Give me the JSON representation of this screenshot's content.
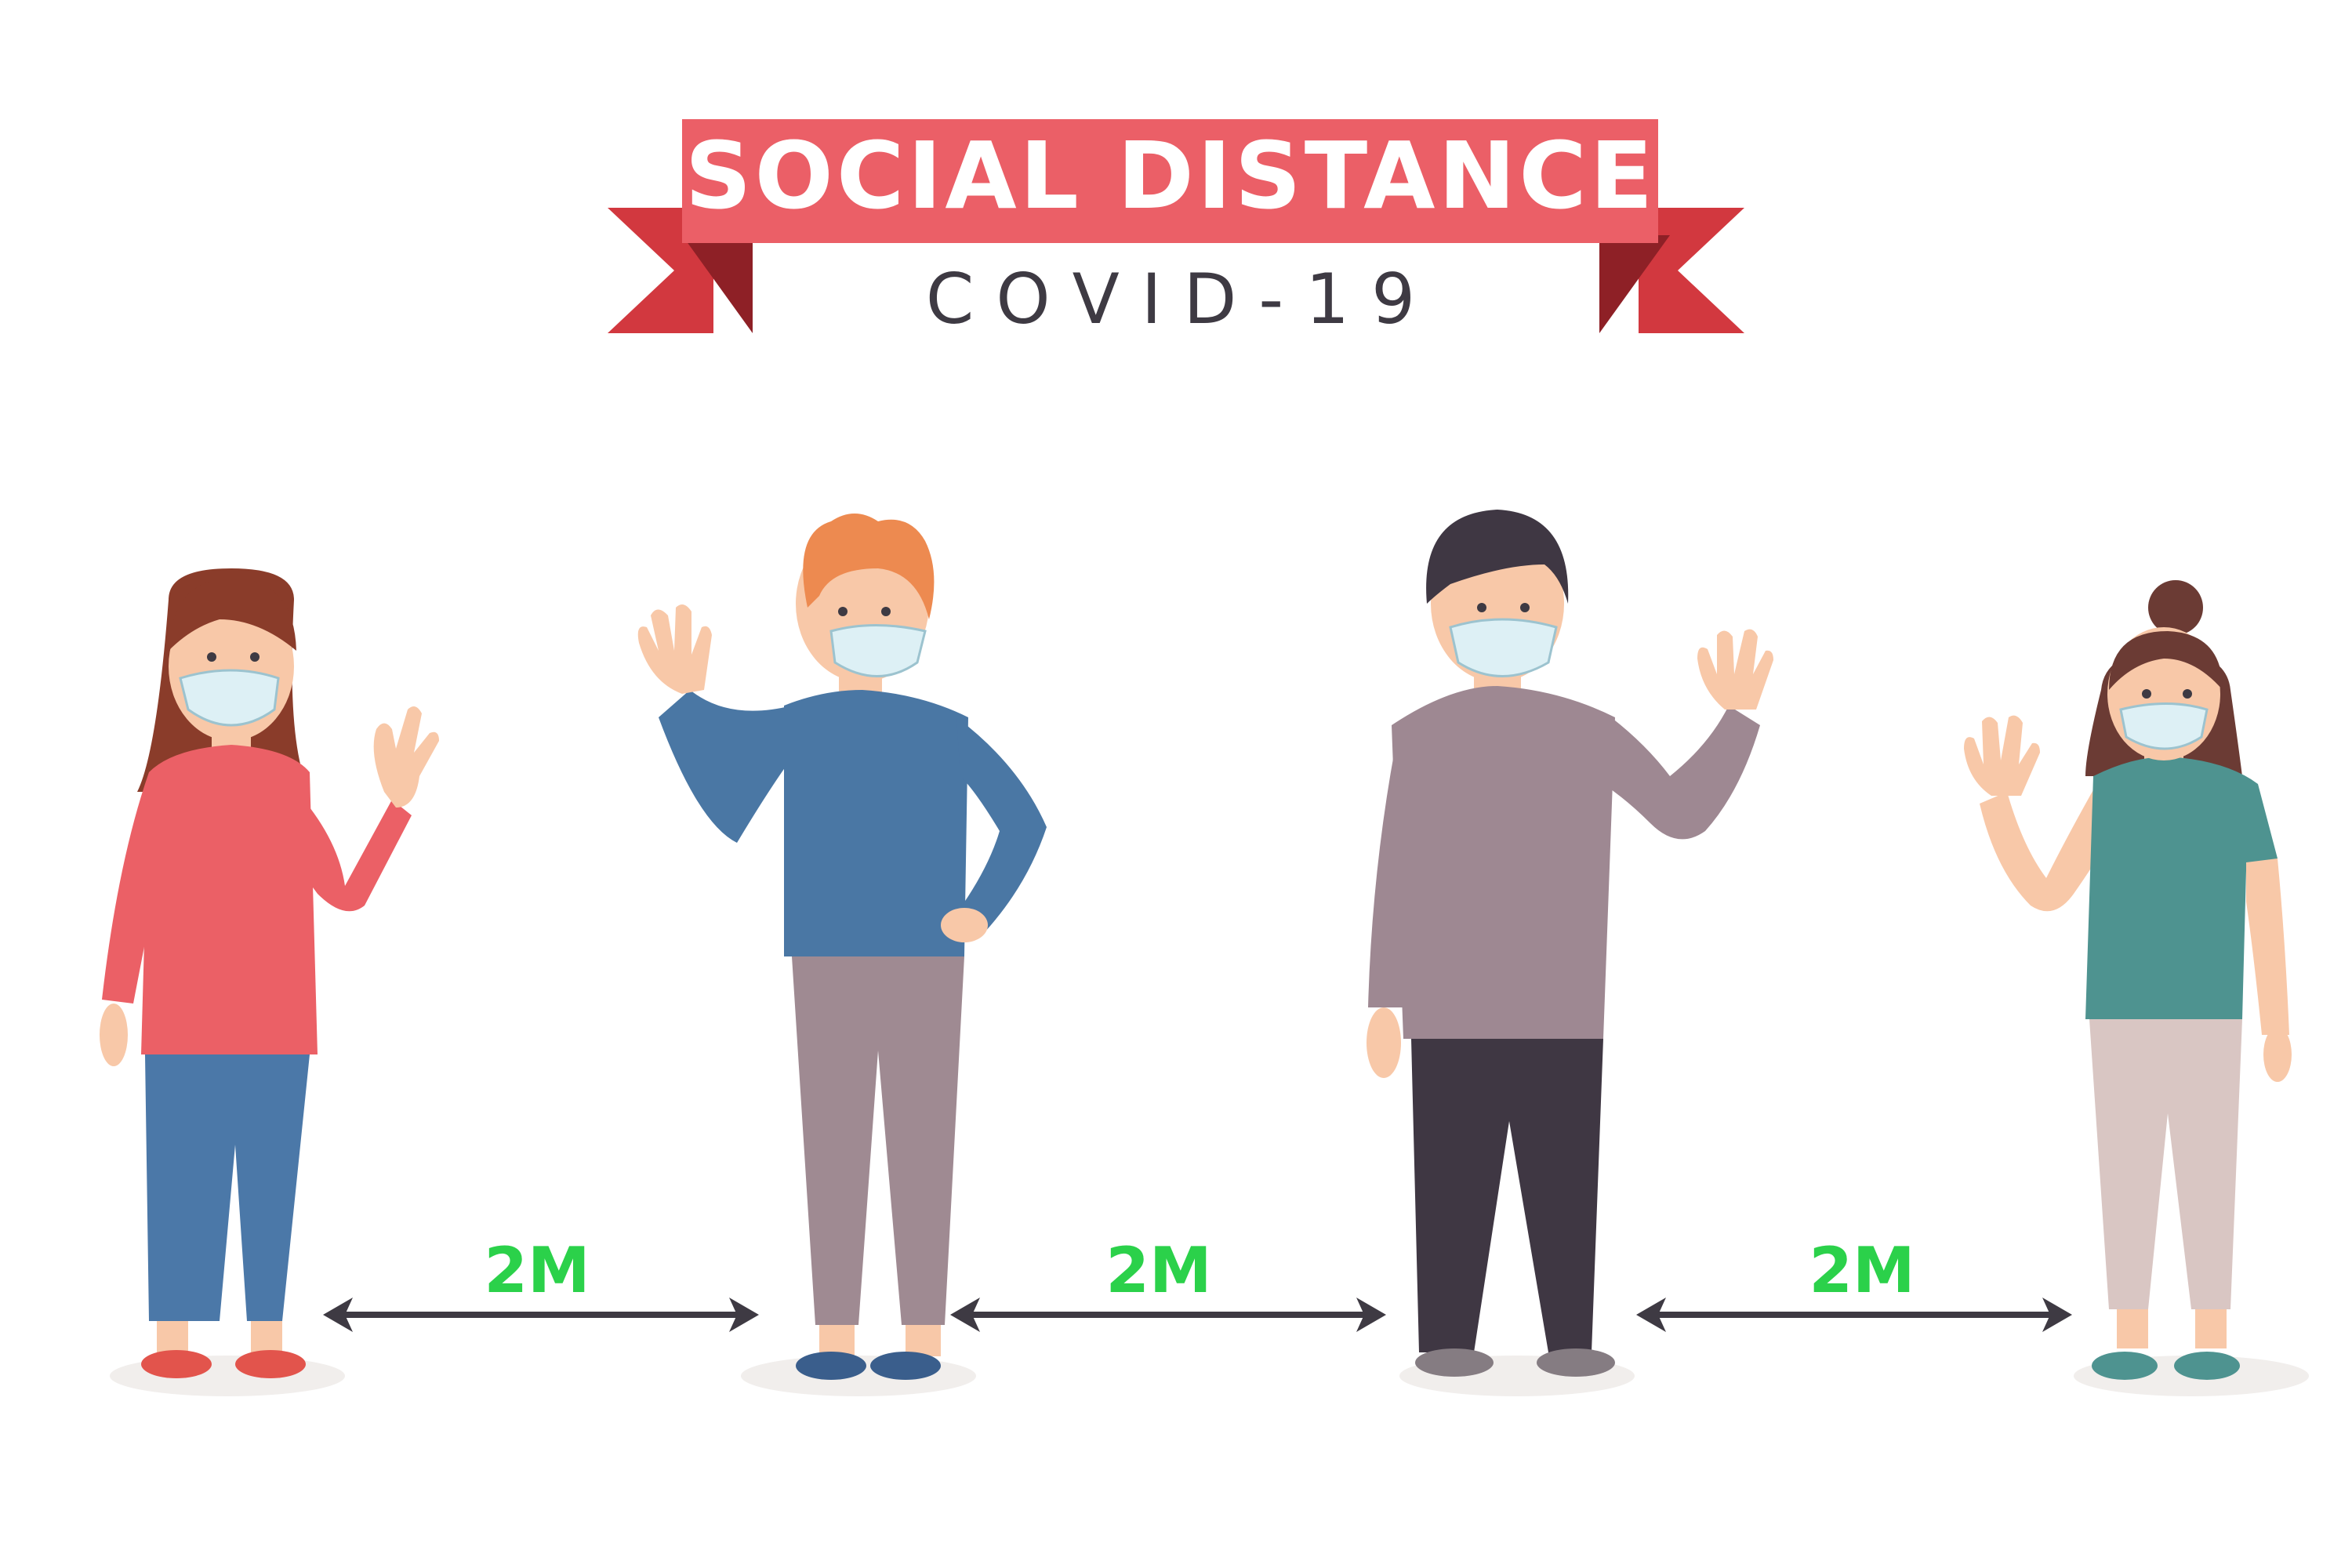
{
  "banner": {
    "title": "SOCIAL DISTANCE",
    "subtitle": "C O V I D - 1 9"
  },
  "distances": [
    {
      "label": "2M"
    },
    {
      "label": "2M"
    },
    {
      "label": "2M"
    }
  ],
  "colors": {
    "ribbon": "#EB5F67",
    "ribbon_dark": "#C9333D",
    "ribbon_fold": "#8E2026",
    "subtitle_text": "#3E3A43",
    "distance_text": "#2BD14A",
    "arrow": "#3E3A43",
    "shadow": "#F1EEEC",
    "mask": "#DDF0F5",
    "skin": "#F8C8A8"
  },
  "people": [
    {
      "name": "woman-red-shirt",
      "shirt": "#EB6066",
      "pants": "#4B78A8",
      "hair": "#8A3C2A",
      "shoes": "#E2544C"
    },
    {
      "name": "man-blue-sweater",
      "shirt": "#4A77A4",
      "pants": "#9F8A92",
      "hair": "#ED8A50",
      "shoes": "#3A5E8C"
    },
    {
      "name": "man-grey-sweater",
      "shirt": "#9E8892",
      "pants": "#3F3743",
      "hair": "#3F3743",
      "shoes": "#857C82"
    },
    {
      "name": "woman-teal-shirt",
      "shirt": "#4E9390",
      "pants": "#D9C6C3",
      "hair": "#6B3B34",
      "shoes": "#4E9390"
    }
  ]
}
